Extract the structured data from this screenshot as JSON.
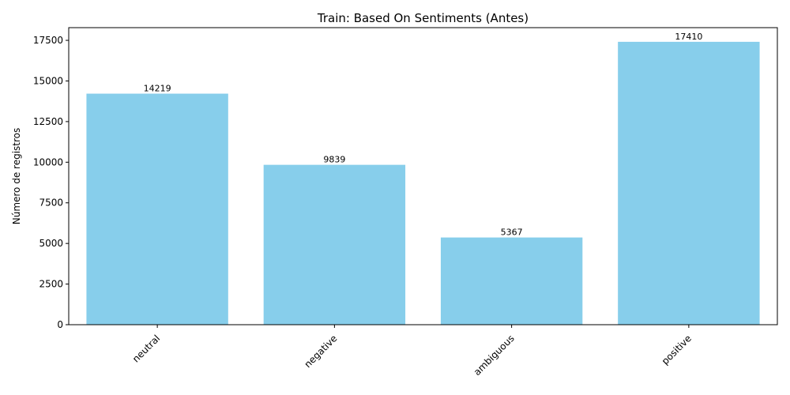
{
  "chart_data": {
    "type": "bar",
    "title": "Train: Based On Sentiments (Antes)",
    "xlabel": "",
    "ylabel": "Número de registros",
    "categories": [
      "neutral",
      "negative",
      "ambiguous",
      "positive"
    ],
    "values": [
      14219,
      9839,
      5367,
      17410
    ],
    "value_labels": [
      "14219",
      "9839",
      "5367",
      "17410"
    ],
    "yticks": [
      0,
      2500,
      5000,
      7500,
      10000,
      12500,
      15000,
      17500
    ],
    "ytick_labels": [
      "0",
      "2500",
      "5000",
      "7500",
      "10000",
      "12500",
      "15000",
      "17500"
    ],
    "ylim": [
      0,
      18281
    ],
    "bar_color": "#87ceeb",
    "xtick_rotation_deg": 45,
    "grid": false,
    "legend": "none"
  }
}
